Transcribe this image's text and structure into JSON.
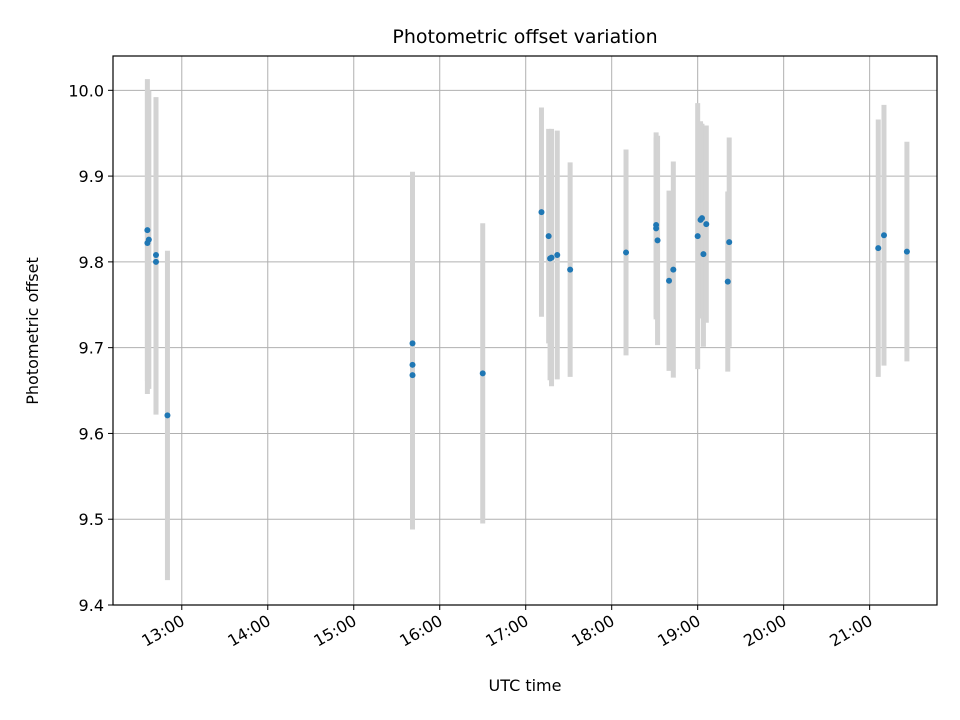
{
  "chart_data": {
    "type": "scatter",
    "title": "Photometric offset variation",
    "xlabel": "UTC time",
    "ylabel": "Photometric offset",
    "x_scale": "time",
    "xlim": [
      "12:12",
      "21:47"
    ],
    "ylim": [
      9.4,
      10.04
    ],
    "x_ticks": [
      "13:00",
      "14:00",
      "15:00",
      "16:00",
      "17:00",
      "18:00",
      "19:00",
      "20:00",
      "21:00"
    ],
    "y_ticks": [
      "9.4",
      "9.5",
      "9.6",
      "9.7",
      "9.8",
      "9.9",
      "10.0"
    ],
    "grid": true,
    "legend": false,
    "colors": {
      "point": "#1f77b4",
      "errorbar": "#d3d3d3",
      "grid": "#b0b0b0"
    },
    "points": [
      {
        "x": "12:36",
        "y": 9.837,
        "err": 0.176
      },
      {
        "x": "12:36",
        "y": 9.822,
        "err": 0.176
      },
      {
        "x": "12:37",
        "y": 9.826,
        "err": 0.174
      },
      {
        "x": "12:42",
        "y": 9.808,
        "err": 0.184
      },
      {
        "x": "12:42",
        "y": 9.8,
        "err": 0.178
      },
      {
        "x": "12:50",
        "y": 9.621,
        "err": 0.192
      },
      {
        "x": "15:41",
        "y": 9.705,
        "err": 0.2
      },
      {
        "x": "15:41",
        "y": 9.68,
        "err": 0.17
      },
      {
        "x": "15:41",
        "y": 9.668,
        "err": 0.18
      },
      {
        "x": "16:30",
        "y": 9.67,
        "err": 0.175
      },
      {
        "x": "17:11",
        "y": 9.858,
        "err": 0.122
      },
      {
        "x": "17:16",
        "y": 9.83,
        "err": 0.125
      },
      {
        "x": "17:17",
        "y": 9.804,
        "err": 0.142
      },
      {
        "x": "17:18",
        "y": 9.805,
        "err": 0.15
      },
      {
        "x": "17:22",
        "y": 9.808,
        "err": 0.145
      },
      {
        "x": "17:31",
        "y": 9.791,
        "err": 0.125
      },
      {
        "x": "18:10",
        "y": 9.811,
        "err": 0.12
      },
      {
        "x": "18:31",
        "y": 9.843,
        "err": 0.108
      },
      {
        "x": "18:31",
        "y": 9.839,
        "err": 0.106
      },
      {
        "x": "18:32",
        "y": 9.825,
        "err": 0.122
      },
      {
        "x": "18:40",
        "y": 9.778,
        "err": 0.105
      },
      {
        "x": "18:43",
        "y": 9.791,
        "err": 0.126
      },
      {
        "x": "19:00",
        "y": 9.83,
        "err": 0.155
      },
      {
        "x": "19:02",
        "y": 9.849,
        "err": 0.115
      },
      {
        "x": "19:03",
        "y": 9.851,
        "err": 0.11
      },
      {
        "x": "19:04",
        "y": 9.809,
        "err": 0.108
      },
      {
        "x": "19:06",
        "y": 9.844,
        "err": 0.115
      },
      {
        "x": "19:21",
        "y": 9.777,
        "err": 0.105
      },
      {
        "x": "19:22",
        "y": 9.823,
        "err": 0.122
      },
      {
        "x": "21:06",
        "y": 9.816,
        "err": 0.15
      },
      {
        "x": "21:10",
        "y": 9.831,
        "err": 0.152
      },
      {
        "x": "21:26",
        "y": 9.812,
        "err": 0.128
      }
    ]
  }
}
